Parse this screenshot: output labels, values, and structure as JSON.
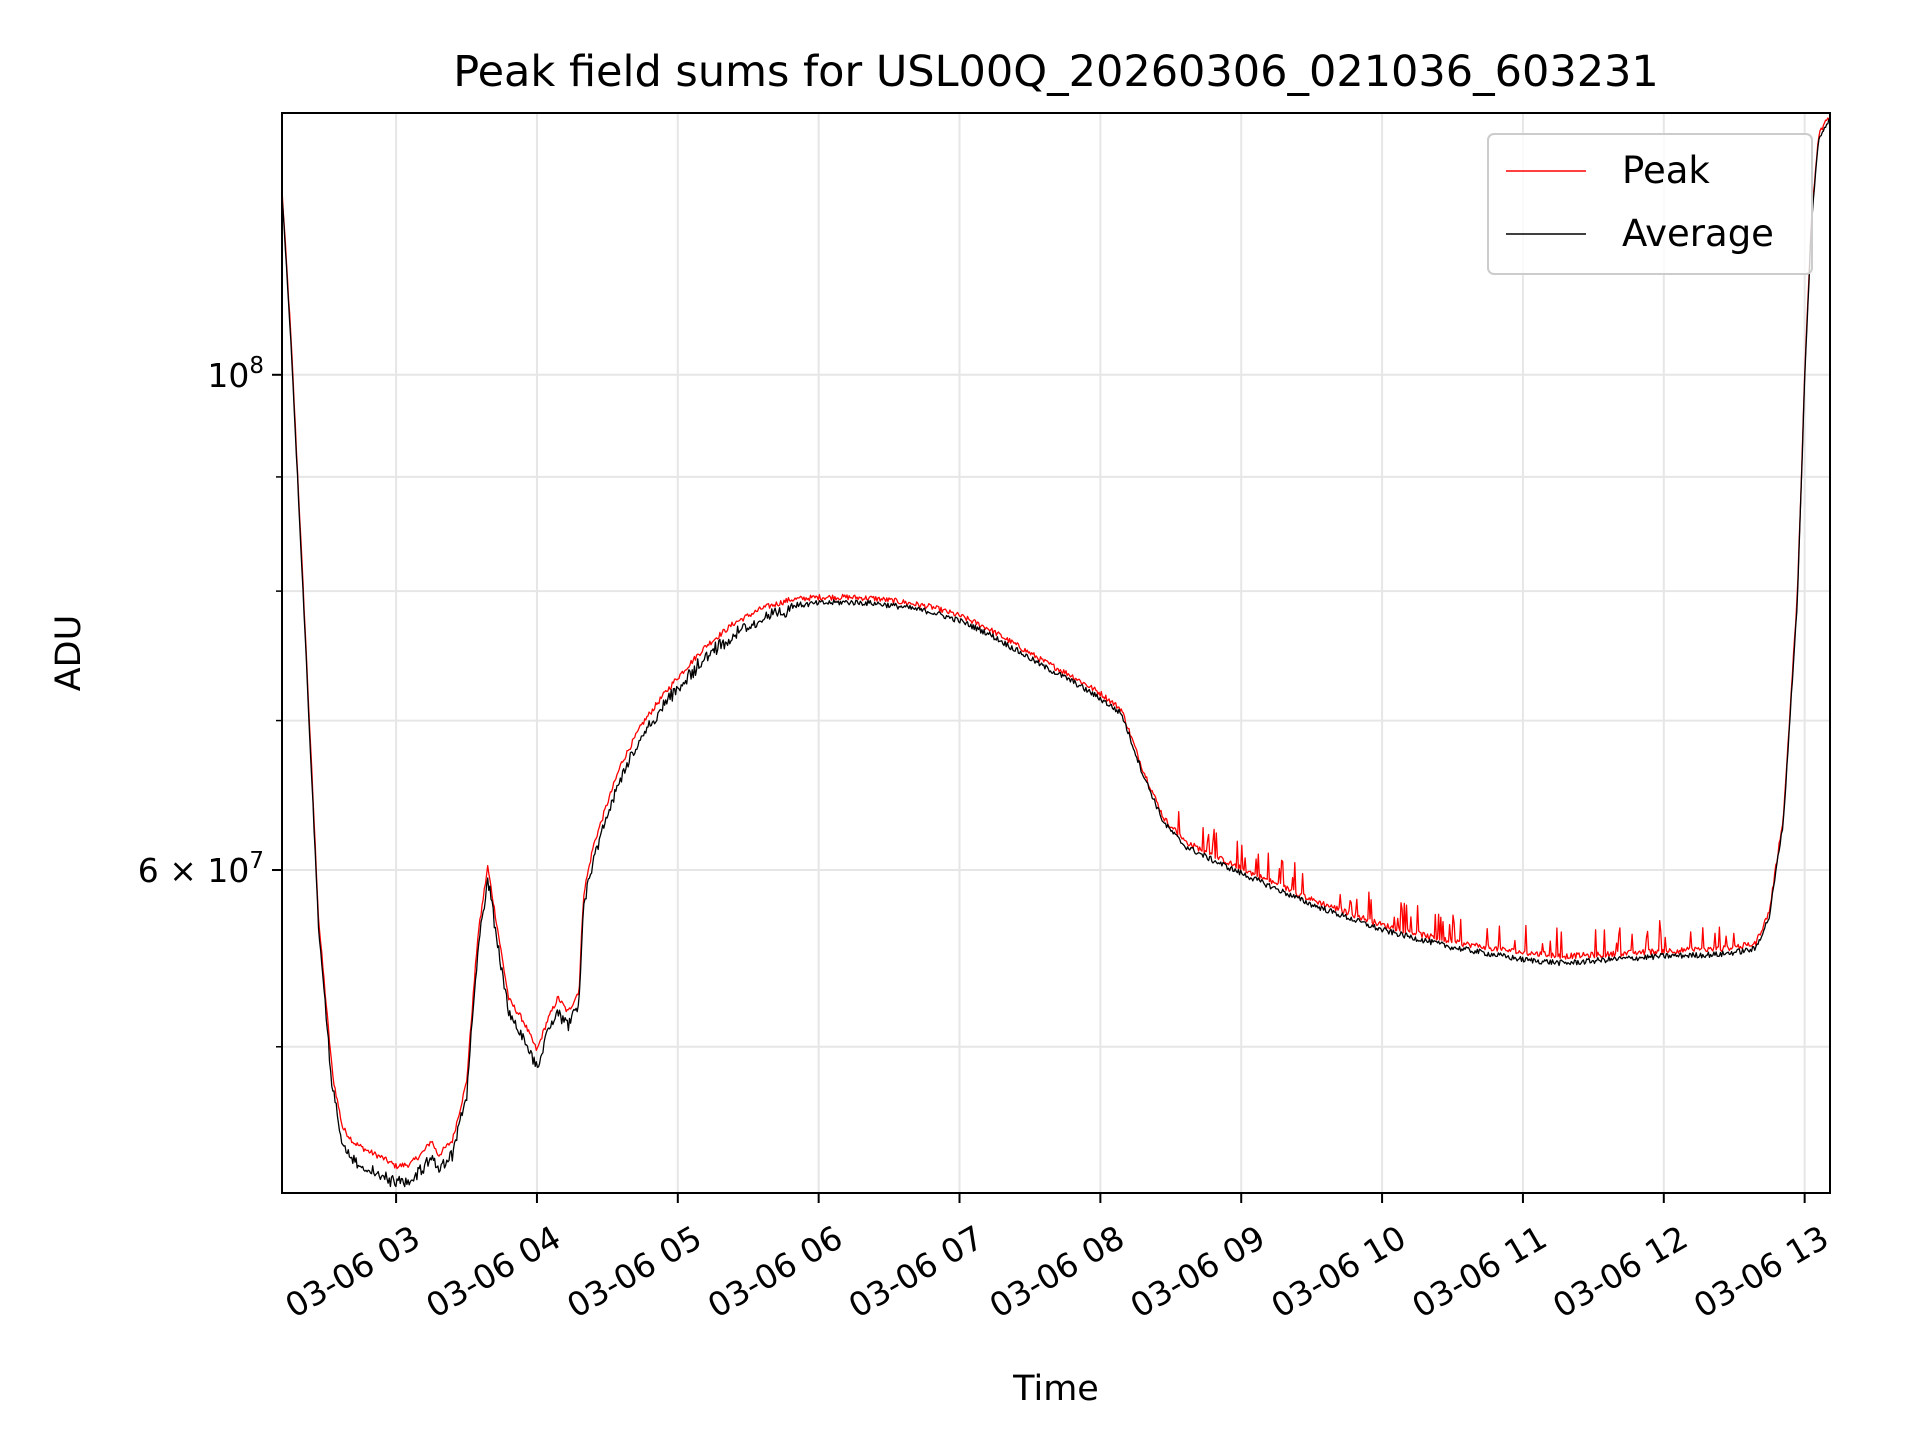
{
  "chart_data": {
    "type": "line",
    "title": "Peak field sums for USL00Q_20260306_021036_603231",
    "xlabel": "Time",
    "ylabel": "ADU",
    "x_unit": "hours since 03-06 00:00",
    "xlim": [
      2.19,
      13.18
    ],
    "ylim": [
      43000000,
      131000000
    ],
    "y_scale": "log",
    "grid": true,
    "legend_position": "top-right",
    "x_ticks": [
      {
        "value": 3,
        "label": "03-06 03"
      },
      {
        "value": 4,
        "label": "03-06 04"
      },
      {
        "value": 5,
        "label": "03-06 05"
      },
      {
        "value": 6,
        "label": "03-06 06"
      },
      {
        "value": 7,
        "label": "03-06 07"
      },
      {
        "value": 8,
        "label": "03-06 08"
      },
      {
        "value": 9,
        "label": "03-06 09"
      },
      {
        "value": 10,
        "label": "03-06 10"
      },
      {
        "value": 11,
        "label": "03-06 11"
      },
      {
        "value": 12,
        "label": "03-06 12"
      },
      {
        "value": 13,
        "label": "03-06 13"
      }
    ],
    "y_ticks": [
      {
        "value": 100000000,
        "label_base": "10",
        "label_exp": "8",
        "label_prefix": ""
      },
      {
        "value": 60000000,
        "label_base": "10",
        "label_exp": "7",
        "label_prefix": "6 × "
      }
    ],
    "y_minor_ticks": [
      50000000,
      70000000,
      80000000,
      90000000
    ],
    "series": [
      {
        "name": "Peak",
        "color": "#ff0000",
        "x": [
          2.19,
          2.25,
          2.35,
          2.45,
          2.55,
          2.62,
          2.7,
          2.8,
          2.9,
          3.0,
          3.1,
          3.2,
          3.25,
          3.3,
          3.4,
          3.5,
          3.58,
          3.65,
          3.72,
          3.8,
          3.9,
          4.0,
          4.07,
          4.15,
          4.22,
          4.3,
          4.33,
          4.4,
          4.5,
          4.6,
          4.75,
          4.9,
          5.0,
          5.2,
          5.4,
          5.6,
          5.8,
          6.0,
          6.2,
          6.4,
          6.6,
          6.8,
          7.0,
          7.2,
          7.4,
          7.6,
          7.8,
          8.0,
          8.15,
          8.3,
          8.45,
          8.6,
          8.8,
          9.0,
          9.5,
          10.0,
          10.5,
          11.0,
          11.3,
          11.6,
          12.0,
          12.4,
          12.65,
          12.75,
          12.85,
          12.95,
          13.0,
          13.05,
          13.1,
          13.15,
          13.18
        ],
        "values": [
          121000000,
          105000000,
          78000000,
          57000000,
          48500000,
          46000000,
          45300000,
          44900000,
          44600000,
          44200000,
          44300000,
          44900000,
          45400000,
          44700000,
          45400000,
          48200000,
          56000000,
          60200000,
          56500000,
          52500000,
          51400000,
          49800000,
          51300000,
          52600000,
          51800000,
          53000000,
          58500000,
          61500000,
          64300000,
          67000000,
          69800000,
          71900000,
          73200000,
          75600000,
          77400000,
          78600000,
          79300000,
          79500000,
          79500000,
          79400000,
          79100000,
          78700000,
          78000000,
          77000000,
          75700000,
          74400000,
          73300000,
          72000000,
          70800000,
          66600000,
          63300000,
          61800000,
          60900000,
          60100000,
          58200000,
          56700000,
          55700000,
          55100000,
          54900000,
          55000000,
          55200000,
          55300000,
          55600000,
          57500000,
          63500000,
          80000000,
          100000000,
          118000000,
          128000000,
          130000000,
          130500000
        ]
      },
      {
        "name": "Average",
        "color": "#000000",
        "x": [
          2.19,
          2.25,
          2.35,
          2.45,
          2.55,
          2.62,
          2.7,
          2.8,
          2.9,
          3.0,
          3.1,
          3.2,
          3.25,
          3.3,
          3.4,
          3.5,
          3.58,
          3.65,
          3.72,
          3.8,
          3.9,
          4.0,
          4.07,
          4.15,
          4.22,
          4.3,
          4.33,
          4.4,
          4.5,
          4.6,
          4.75,
          4.9,
          5.0,
          5.2,
          5.4,
          5.6,
          5.8,
          6.0,
          6.2,
          6.4,
          6.6,
          6.8,
          7.0,
          7.2,
          7.4,
          7.6,
          7.8,
          8.0,
          8.15,
          8.3,
          8.45,
          8.6,
          8.8,
          9.0,
          9.5,
          10.0,
          10.5,
          11.0,
          11.3,
          11.6,
          12.0,
          12.4,
          12.65,
          12.75,
          12.85,
          12.95,
          13.0,
          13.05,
          13.1,
          13.15,
          13.18
        ],
        "values": [
          120500000,
          104500000,
          77500000,
          56500000,
          48000000,
          45500000,
          44700000,
          44300000,
          44000000,
          43700000,
          43800000,
          44400000,
          45000000,
          44200000,
          44900000,
          47800000,
          55500000,
          59700000,
          56000000,
          52000000,
          50900000,
          49200000,
          50800000,
          52100000,
          51300000,
          52500000,
          58000000,
          61000000,
          63800000,
          66500000,
          69300000,
          71400000,
          72700000,
          75100000,
          76900000,
          78100000,
          78800000,
          79000000,
          79100000,
          79000000,
          78700000,
          78300000,
          77600000,
          76600000,
          75300000,
          74000000,
          72900000,
          71600000,
          70500000,
          66300000,
          63000000,
          61500000,
          60600000,
          59800000,
          57900000,
          56400000,
          55400000,
          54700000,
          54500000,
          54700000,
          54900000,
          55000000,
          55300000,
          57200000,
          63200000,
          79500000,
          99500000,
          117500000,
          127500000,
          129500000,
          130000000
        ]
      }
    ]
  }
}
